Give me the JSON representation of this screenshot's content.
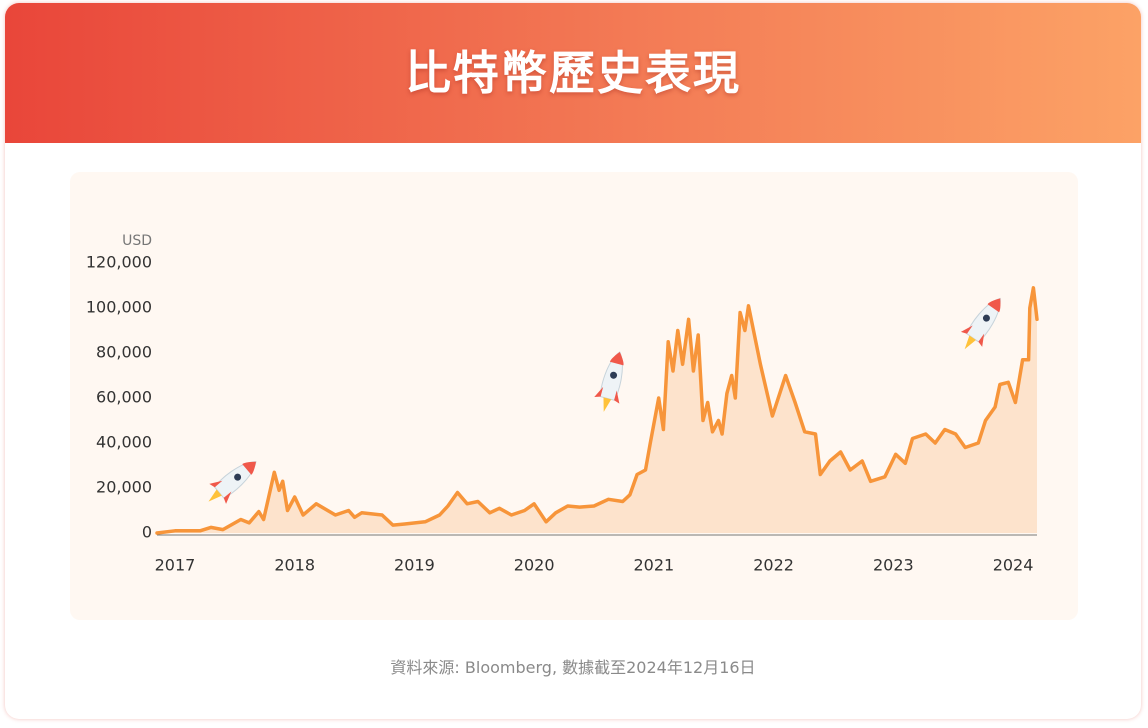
{
  "chart_data": {
    "type": "area",
    "title": "比特幣歷史表現",
    "y_label": "USD",
    "source": "資料來源: Bloomberg, 數據截至2024年12月16日",
    "color": "#f7953a",
    "fill_color": "#fde3cc",
    "xlim": [
      2016.85,
      2024.2
    ],
    "xticks": [
      2017,
      2018,
      2019,
      2020,
      2021,
      2022,
      2023,
      2024
    ],
    "ylim": [
      0,
      120000
    ],
    "yticks": [
      0,
      {
        "value": 20000,
        "label": "20,000"
      },
      {
        "value": 40000,
        "label": "40,000"
      },
      {
        "value": 60000,
        "label": "60,000"
      },
      {
        "value": 80000,
        "label": "80,000"
      },
      {
        "value": 100000,
        "label": "100,000"
      },
      {
        "value": 120000,
        "label": "120,000"
      }
    ],
    "x": [
      2016.85,
      2017.0,
      2017.21,
      2017.3,
      2017.4,
      2017.55,
      2017.62,
      2017.7,
      2017.74,
      2017.83,
      2017.87,
      2017.9,
      2017.94,
      2018.0,
      2018.07,
      2018.18,
      2018.34,
      2018.45,
      2018.5,
      2018.56,
      2018.73,
      2018.82,
      2018.92,
      2019.09,
      2019.21,
      2019.28,
      2019.36,
      2019.44,
      2019.53,
      2019.63,
      2019.71,
      2019.81,
      2019.92,
      2020.0,
      2020.1,
      2020.18,
      2020.28,
      2020.38,
      2020.5,
      2020.62,
      2020.74,
      2020.8,
      2020.86,
      2020.93,
      2020.97,
      2021.04,
      2021.08,
      2021.12,
      2021.16,
      2021.2,
      2021.24,
      2021.29,
      2021.33,
      2021.37,
      2021.41,
      2021.45,
      2021.49,
      2021.54,
      2021.57,
      2021.61,
      2021.65,
      2021.68,
      2021.72,
      2021.76,
      2021.79,
      2021.89,
      2021.99,
      2022.1,
      2022.18,
      2022.26,
      2022.35,
      2022.39,
      2022.47,
      2022.56,
      2022.64,
      2022.74,
      2022.81,
      2022.93,
      2023.02,
      2023.1,
      2023.16,
      2023.27,
      2023.35,
      2023.43,
      2023.52,
      2023.6,
      2023.71,
      2023.77,
      2023.85,
      2023.89,
      2023.96,
      2024.02,
      2024.08,
      2024.13,
      2024.14,
      2024.17,
      2024.2
    ],
    "values": [
      0,
      1000,
      1000,
      2500,
      1500,
      6000,
      4500,
      9500,
      6000,
      27000,
      19000,
      23000,
      10000,
      16000,
      8000,
      13000,
      8000,
      10000,
      7000,
      9000,
      8000,
      3500,
      4000,
      5000,
      8000,
      12000,
      18000,
      13000,
      14000,
      9000,
      11000,
      8000,
      10000,
      13000,
      5000,
      9000,
      12000,
      11500,
      12000,
      15000,
      14000,
      17000,
      26000,
      28000,
      40000,
      60000,
      46000,
      85000,
      72000,
      90000,
      75000,
      95000,
      72000,
      88000,
      50000,
      58000,
      45000,
      50000,
      44000,
      62000,
      70000,
      60000,
      98000,
      90000,
      101000,
      75000,
      52000,
      70000,
      58000,
      45000,
      44000,
      26000,
      32000,
      36000,
      28000,
      32000,
      23000,
      25000,
      35000,
      31000,
      42000,
      44000,
      40000,
      46000,
      44000,
      38000,
      40000,
      50000,
      56000,
      66000,
      67000,
      58000,
      77000,
      77000,
      100000,
      109000,
      95000
    ]
  }
}
